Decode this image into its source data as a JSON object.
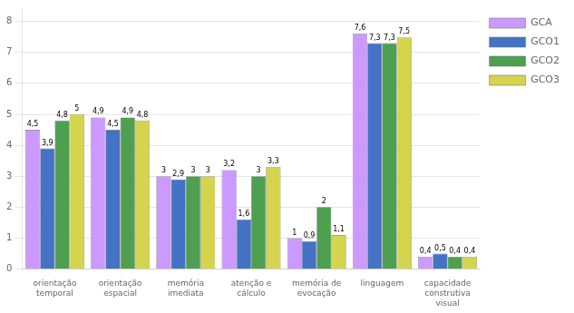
{
  "chart_data": {
    "type": "bar",
    "categories": [
      "orientação\ntemporal",
      "orientação\nespacial",
      "memória\nimediata",
      "atenção e\ncálculo",
      "memória de\nevocação",
      "linguagem",
      "capacidade\nconstrutiva\nvisual"
    ],
    "series": [
      {
        "name": "GCA",
        "color": "#cc99ff",
        "values": [
          4.5,
          4.9,
          3.0,
          3.2,
          1.0,
          7.6,
          0.4
        ],
        "value_labels": [
          "4,5",
          "4,9",
          "3",
          "3,2",
          "1",
          "7,6",
          "0,4"
        ]
      },
      {
        "name": "GCO1",
        "color": "#4472c4",
        "values": [
          3.9,
          4.5,
          2.9,
          1.6,
          0.9,
          7.3,
          0.5
        ],
        "value_labels": [
          "3,9",
          "4,5",
          "2,9",
          "1,6",
          "0,9",
          "7,3",
          "0,5"
        ]
      },
      {
        "name": "GCO2",
        "color": "#4e9f50",
        "values": [
          4.8,
          4.9,
          3.0,
          3.0,
          2.0,
          7.3,
          0.4
        ],
        "value_labels": [
          "4,8",
          "4,9",
          "3",
          "3",
          "2",
          "7,3",
          "0,4"
        ]
      },
      {
        "name": "GCO3",
        "color": "#d4d44e",
        "values": [
          5.0,
          4.8,
          3.0,
          3.3,
          1.1,
          7.5,
          0.4
        ],
        "value_labels": [
          "5",
          "4,8",
          "3",
          "3,3",
          "1,1",
          "7,5",
          "0,4"
        ]
      }
    ],
    "ylim": [
      0,
      8.4
    ],
    "yticks": [
      0,
      1,
      2,
      3,
      4,
      5,
      6,
      7,
      8
    ],
    "grid": true,
    "legend": "right",
    "data_labels": true
  }
}
